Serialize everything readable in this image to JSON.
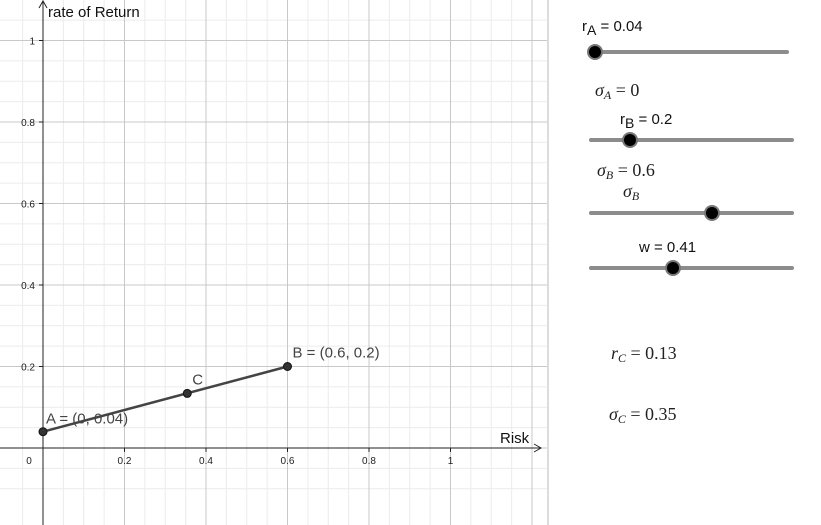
{
  "graph": {
    "y_axis_label": "rate of Return",
    "x_axis_label": "Risk",
    "x_ticks": [
      "0",
      "0.2",
      "0.4",
      "0.6",
      "0.8",
      "1"
    ],
    "x_tick_values": [
      0,
      0.2,
      0.4,
      0.6,
      0.8,
      1
    ],
    "y_ticks": [
      "0.2",
      "0.4",
      "0.6",
      "0.8",
      "1"
    ],
    "y_tick_values": [
      0.2,
      0.4,
      0.6,
      0.8,
      1
    ],
    "points": [
      {
        "name": "A",
        "label": "A = (0, 0.04)",
        "x": 0,
        "y": 0.04
      },
      {
        "name": "C",
        "label": "C",
        "x": 0.354,
        "y": 0.134
      },
      {
        "name": "B",
        "label": "B = (0.6, 0.2)",
        "x": 0.6,
        "y": 0.2
      }
    ],
    "colors": {
      "grid_minor": "#ececec",
      "grid_major": "#c8c8c8",
      "axis": "#222222",
      "segment": "#444444",
      "point": "#333333"
    }
  },
  "panel": {
    "slider_rA": {
      "label_main": "r",
      "label_sub": "A",
      "label_rest": " = 0.04",
      "value": 0.04,
      "fraction": 0.03
    },
    "sigmaA": {
      "symbol": "σ",
      "sub": "A",
      "rest": " = 0"
    },
    "slider_rB": {
      "label_main": "r",
      "label_sub": "B",
      "label_rest": " = 0.2",
      "value": 0.2,
      "fraction": 0.2
    },
    "sigmaB": {
      "symbol": "σ",
      "sub": "B",
      "rest": " = 0.6"
    },
    "slider_sigmaB": {
      "symbol": "σ",
      "sub": "B",
      "value": 0.6,
      "fraction": 0.6
    },
    "slider_w": {
      "label": "w = 0.41",
      "value": 0.41,
      "fraction": 0.41
    },
    "rC": {
      "symbol": "r",
      "sub": "C",
      "rest": " = 0.13"
    },
    "sigmaC": {
      "symbol": "σ",
      "sub": "C",
      "rest": " = 0.35"
    }
  }
}
